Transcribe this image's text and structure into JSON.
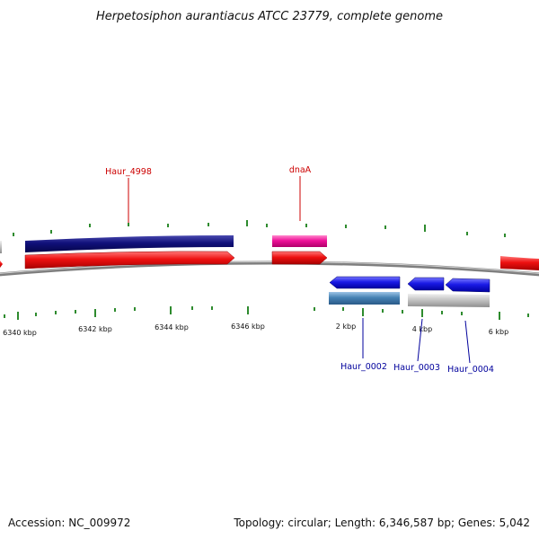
{
  "title": "Herpetosiphon aurantiacus ATCC 23779, complete genome",
  "footer": {
    "accession": "Accession: NC_009972",
    "summary": "Topology: circular; Length: 6,346,587 bp; Genes: 5,042"
  },
  "colors": {
    "backbone": "#7f7f7f",
    "tick": "#2e8b2e",
    "forward_gene": "#ee1111",
    "reverse_gene": "#1a1ae6",
    "label_forward": "#cc0000",
    "label_reverse": "#00009c"
  },
  "ticks": [
    {
      "label": "6340 kbp"
    },
    {
      "label": "6342 kbp"
    },
    {
      "label": "6344 kbp"
    },
    {
      "label": "6346 kbp"
    },
    {
      "label": "2 kbp"
    },
    {
      "label": "4 kbp"
    },
    {
      "label": "6 kbp"
    }
  ],
  "genes": [
    {
      "name": "Haur_4998",
      "strand": "+",
      "color": "#ee1111"
    },
    {
      "name": "dnaA",
      "strand": "+",
      "color": "#ee1111"
    },
    {
      "name": "Haur_0002",
      "strand": "-",
      "color": "#1a1ae6"
    },
    {
      "name": "Haur_0003",
      "strand": "-",
      "color": "#1a1ae6"
    },
    {
      "name": "Haur_0004",
      "strand": "-",
      "color": "#1a1ae6"
    }
  ],
  "features": [
    {
      "type": "CDS",
      "color": "#10107a"
    },
    {
      "type": "CDS",
      "color": "#ee1199"
    },
    {
      "type": "CDS",
      "color": "#4682b4"
    },
    {
      "type": "CDS",
      "color": "#c0c0c0"
    }
  ]
}
